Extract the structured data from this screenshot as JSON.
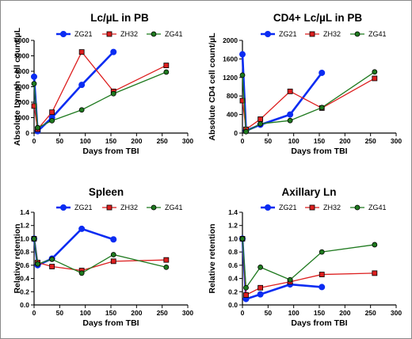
{
  "chart_data": [
    {
      "type": "line",
      "title": "Lc/µL in PB",
      "xlabel": "Days from TBI",
      "ylabel": "Absolute Lymph cell count/µL",
      "xlim": [
        0,
        300
      ],
      "ylim": [
        0,
        6000
      ],
      "xticks": [
        "0",
        "50",
        "100",
        "150",
        "200",
        "250",
        "300"
      ],
      "yticks": [
        "0",
        "1000",
        "2000",
        "3000",
        "4000",
        "5000",
        "6000"
      ],
      "legend": "top",
      "series": [
        {
          "name": "ZG21",
          "color": "#0b2cf2",
          "marker": "circle",
          "thick": true,
          "points": [
            [
              0,
              3650
            ],
            [
              7,
              120
            ],
            [
              35,
              1000
            ],
            [
              93,
              3120
            ],
            [
              155,
              5250
            ]
          ]
        },
        {
          "name": "ZH32",
          "color": "#dd1f1f",
          "marker": "square",
          "thick": false,
          "points": [
            [
              0,
              1750
            ],
            [
              7,
              250
            ],
            [
              35,
              1350
            ],
            [
              93,
              5250
            ],
            [
              155,
              2700
            ],
            [
              258,
              4380
            ]
          ]
        },
        {
          "name": "ZG41",
          "color": "#1f7a1f",
          "marker": "circle",
          "thick": false,
          "points": [
            [
              0,
              3200
            ],
            [
              7,
              350
            ],
            [
              35,
              800
            ],
            [
              93,
              1500
            ],
            [
              155,
              2550
            ],
            [
              258,
              3950
            ]
          ]
        }
      ]
    },
    {
      "type": "line",
      "title": "CD4+ Lc/µL in PB",
      "xlabel": "Days from TBI",
      "ylabel": "Absolute CD4 cell count/µL",
      "xlim": [
        0,
        300
      ],
      "ylim": [
        0,
        2000
      ],
      "xticks": [
        "0",
        "50",
        "100",
        "150",
        "200",
        "250",
        "300"
      ],
      "yticks": [
        "0",
        "400",
        "800",
        "1200",
        "1600",
        "2000"
      ],
      "legend": "top",
      "series": [
        {
          "name": "ZG21",
          "color": "#0b2cf2",
          "marker": "circle",
          "thick": true,
          "points": [
            [
              0,
              1700
            ],
            [
              7,
              50
            ],
            [
              35,
              180
            ],
            [
              93,
              400
            ],
            [
              155,
              1300
            ]
          ]
        },
        {
          "name": "ZH32",
          "color": "#dd1f1f",
          "marker": "square",
          "thick": false,
          "points": [
            [
              0,
              700
            ],
            [
              7,
              80
            ],
            [
              35,
              300
            ],
            [
              93,
              900
            ],
            [
              155,
              540
            ],
            [
              258,
              1180
            ]
          ]
        },
        {
          "name": "ZG41",
          "color": "#1f7a1f",
          "marker": "circle",
          "thick": false,
          "points": [
            [
              0,
              1250
            ],
            [
              7,
              30
            ],
            [
              35,
              200
            ],
            [
              93,
              270
            ],
            [
              155,
              550
            ],
            [
              258,
              1320
            ]
          ]
        }
      ]
    },
    {
      "type": "line",
      "title": "Spleen",
      "xlabel": "Days from TBI",
      "ylabel": "Relative retention",
      "xlim": [
        0,
        300
      ],
      "ylim": [
        0.0,
        1.4
      ],
      "xticks": [
        "0",
        "50",
        "100",
        "150",
        "200",
        "250",
        "300"
      ],
      "yticks": [
        "0.0",
        "0.2",
        "0.4",
        "0.6",
        "0.8",
        "1.0",
        "1.2",
        "1.4"
      ],
      "legend": "top",
      "series": [
        {
          "name": "ZG21",
          "color": "#0b2cf2",
          "marker": "circle",
          "thick": true,
          "points": [
            [
              0,
              1.0
            ],
            [
              7,
              0.6
            ],
            [
              35,
              0.7
            ],
            [
              93,
              1.15
            ],
            [
              155,
              0.99
            ]
          ]
        },
        {
          "name": "ZH32",
          "color": "#dd1f1f",
          "marker": "square",
          "thick": false,
          "points": [
            [
              0,
              1.0
            ],
            [
              7,
              0.64
            ],
            [
              35,
              0.58
            ],
            [
              93,
              0.52
            ],
            [
              155,
              0.66
            ],
            [
              258,
              0.68
            ]
          ]
        },
        {
          "name": "ZG41",
          "color": "#1f7a1f",
          "marker": "circle",
          "thick": false,
          "points": [
            [
              0,
              1.0
            ],
            [
              7,
              0.62
            ],
            [
              35,
              0.69
            ],
            [
              93,
              0.48
            ],
            [
              155,
              0.76
            ],
            [
              258,
              0.57
            ]
          ]
        }
      ]
    },
    {
      "type": "line",
      "title": "Axillary Ln",
      "xlabel": "Days from TBI",
      "ylabel": "Relative retention",
      "xlim": [
        0,
        300
      ],
      "ylim": [
        0.0,
        1.4
      ],
      "xticks": [
        "0",
        "50",
        "100",
        "150",
        "200",
        "250",
        "300"
      ],
      "yticks": [
        "0.0",
        "0.2",
        "0.4",
        "0.6",
        "0.8",
        "1.0",
        "1.2",
        "1.4"
      ],
      "legend": "top",
      "series": [
        {
          "name": "ZG21",
          "color": "#0b2cf2",
          "marker": "circle",
          "thick": true,
          "points": [
            [
              0,
              1.0
            ],
            [
              7,
              0.09
            ],
            [
              35,
              0.16
            ],
            [
              93,
              0.31
            ],
            [
              155,
              0.27
            ]
          ]
        },
        {
          "name": "ZH32",
          "color": "#dd1f1f",
          "marker": "square",
          "thick": false,
          "points": [
            [
              0,
              1.0
            ],
            [
              7,
              0.15
            ],
            [
              35,
              0.26
            ],
            [
              93,
              0.35
            ],
            [
              155,
              0.46
            ],
            [
              258,
              0.48
            ]
          ]
        },
        {
          "name": "ZG41",
          "color": "#1f7a1f",
          "marker": "circle",
          "thick": false,
          "points": [
            [
              0,
              1.0
            ],
            [
              7,
              0.26
            ],
            [
              35,
              0.57
            ],
            [
              93,
              0.38
            ],
            [
              155,
              0.8
            ],
            [
              258,
              0.91
            ]
          ]
        }
      ]
    }
  ]
}
